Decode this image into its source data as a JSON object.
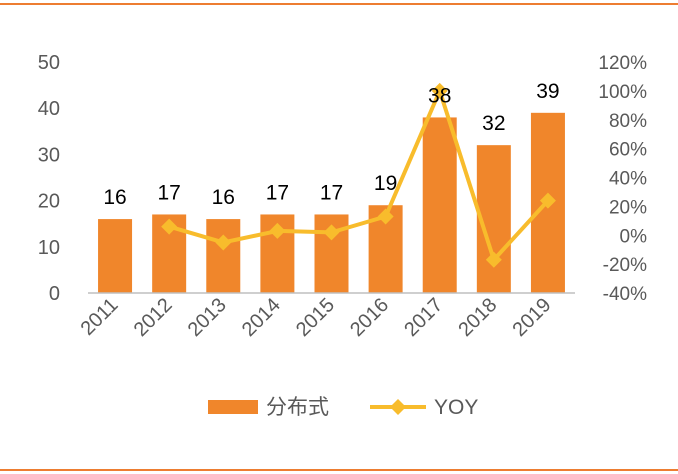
{
  "colors": {
    "rule": "#ED7D31",
    "bar": "#F0862B",
    "line": "#F8BC2C",
    "axis": "#BFBFBF",
    "text": "#595959"
  },
  "chart_data": {
    "type": "bar",
    "categories": [
      "2011",
      "2012",
      "2013",
      "2014",
      "2015",
      "2016",
      "2017",
      "2018",
      "2019"
    ],
    "series": [
      {
        "name": "分布式",
        "type": "bar",
        "axis": "left",
        "values": [
          16,
          17,
          16,
          17,
          17,
          19,
          38,
          32,
          39
        ],
        "data_labels": [
          "16",
          "17",
          "16",
          "17",
          "17",
          "19",
          "38",
          "32",
          "39"
        ]
      },
      {
        "name": "YOY",
        "type": "line",
        "axis": "right",
        "marker": "diamond",
        "values": [
          null,
          6,
          -5,
          3,
          2,
          13,
          100,
          -17,
          24
        ]
      }
    ],
    "y_left": {
      "min": 0,
      "max": 50,
      "ticks": [
        "0",
        "10",
        "20",
        "30",
        "40",
        "50"
      ]
    },
    "y_right": {
      "min": -40,
      "max": 120,
      "ticks": [
        "-40%",
        "-20%",
        "0%",
        "20%",
        "40%",
        "60%",
        "80%",
        "100%",
        "120%"
      ]
    },
    "legend": {
      "position": "bottom",
      "items": [
        "分布式",
        "YOY"
      ]
    },
    "grid": false
  }
}
